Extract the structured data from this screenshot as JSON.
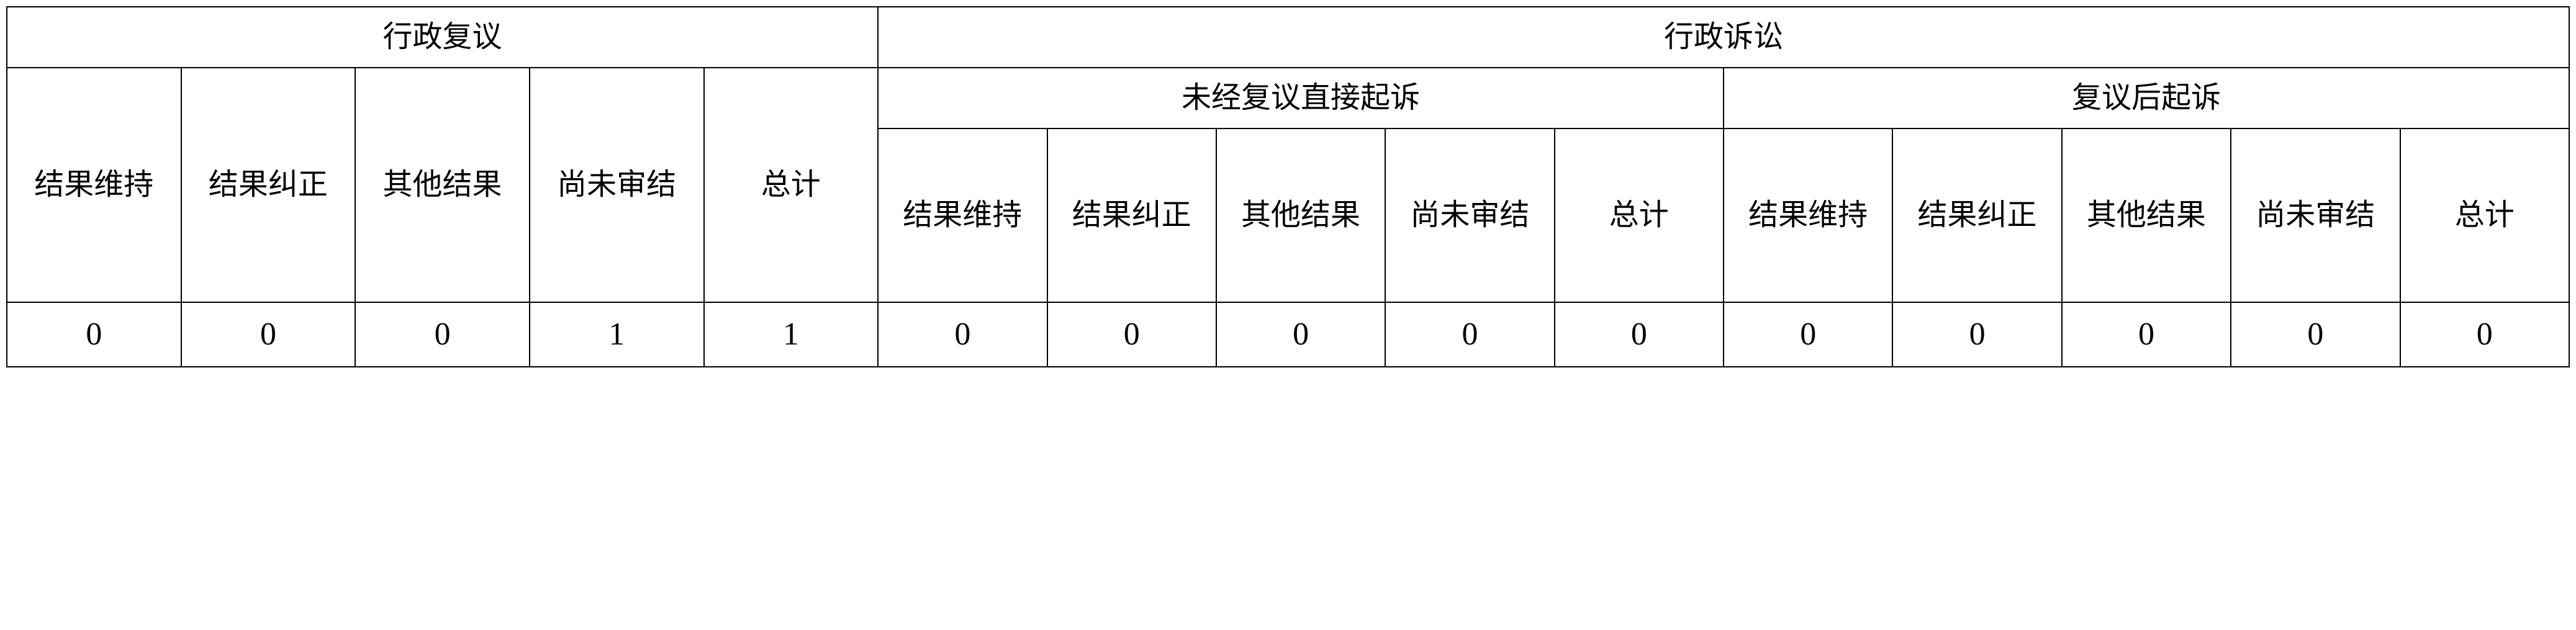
{
  "table": {
    "type": "table",
    "background_color": "#ffffff",
    "border_color": "#000000",
    "border_width": 2,
    "text_color": "#000000",
    "font_family": "SimSun",
    "header_fontsize": 48,
    "data_fontsize": 52,
    "top_headers": {
      "left": "行政复议",
      "right": "行政诉讼"
    },
    "sub_headers": {
      "direct_suit": "未经复议直接起诉",
      "after_review_suit": "复议后起诉"
    },
    "column_labels": {
      "review": {
        "c1": "结果维持",
        "c2": "结果纠正",
        "c3": "其他结果",
        "c4": "尚未审结",
        "c5": "总计"
      },
      "direct": {
        "c1": "结果维持",
        "c2": "结果纠正",
        "c3": "其他结果",
        "c4": "尚未审结",
        "c5": "总计"
      },
      "after": {
        "c1": "结果维持",
        "c2": "结果纠正",
        "c3": "其他结果",
        "c4": "尚未审结",
        "c5": "总计"
      }
    },
    "data_row": {
      "review": {
        "v1": "0",
        "v2": "0",
        "v3": "0",
        "v4": "1",
        "v5": "1"
      },
      "direct": {
        "v1": "0",
        "v2": "0",
        "v3": "0",
        "v4": "0",
        "v5": "0"
      },
      "after": {
        "v1": "0",
        "v2": "0",
        "v3": "0",
        "v4": "0",
        "v5": "0"
      }
    }
  }
}
